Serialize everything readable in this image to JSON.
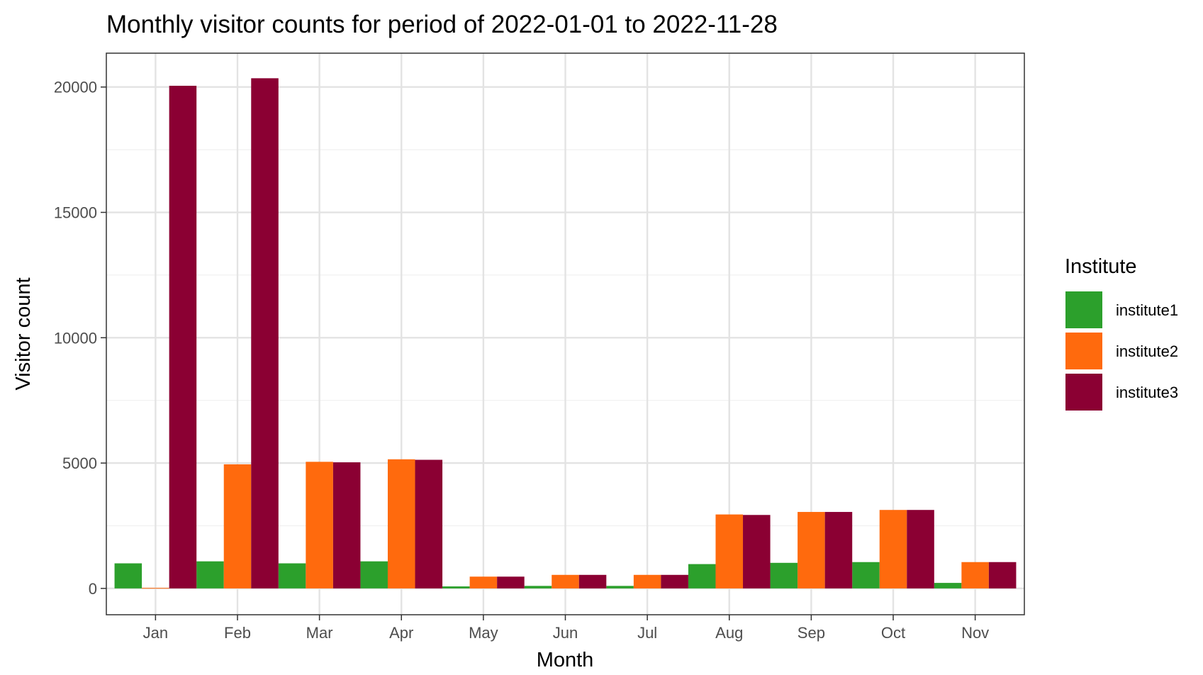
{
  "chart_data": {
    "type": "bar",
    "title": "Monthly visitor counts for period of 2022-01-01 to 2022-11-28",
    "xlabel": "Month",
    "ylabel": "Visitor count",
    "categories": [
      "Jan",
      "Feb",
      "Mar",
      "Apr",
      "May",
      "Jun",
      "Jul",
      "Aug",
      "Sep",
      "Oct",
      "Nov"
    ],
    "series": [
      {
        "name": "institute1",
        "color": "#2ca02c",
        "values": [
          1000,
          1080,
          1000,
          1080,
          80,
          100,
          100,
          970,
          1020,
          1050,
          220
        ]
      },
      {
        "name": "institute2",
        "color": "#ff6a0d",
        "values": [
          20,
          4950,
          5050,
          5150,
          470,
          540,
          540,
          2950,
          3050,
          3130,
          1050
        ]
      },
      {
        "name": "institute3",
        "color": "#8b0033",
        "values": [
          20050,
          20350,
          5030,
          5130,
          470,
          540,
          540,
          2930,
          3050,
          3130,
          1050
        ]
      }
    ],
    "ylim": [
      -1050,
      21350
    ],
    "yticks": [
      0,
      5000,
      10000,
      15000,
      20000
    ],
    "ytick_labels": [
      "0",
      "5000",
      "10000",
      "15000",
      "20000"
    ],
    "grid": true,
    "legend": {
      "title": "Institute",
      "position": "right"
    }
  }
}
